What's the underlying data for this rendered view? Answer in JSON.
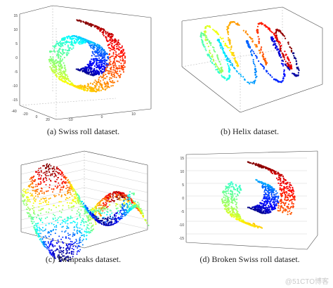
{
  "figure": {
    "panels": [
      {
        "id": "a",
        "caption": "(a)  Swiss roll dataset.",
        "chart_type": "scatter3d",
        "colormap": "jet",
        "z_ticks": [
          "15",
          "10",
          "5",
          "0",
          "-5",
          "-10",
          "-15"
        ],
        "x_ticks": [
          "-40",
          "-20",
          "0",
          "20"
        ],
        "y_ticks": [
          "-10",
          "0",
          "10"
        ]
      },
      {
        "id": "b",
        "caption": "(b)  Helix dataset.",
        "chart_type": "scatter3d",
        "colormap": "jet"
      },
      {
        "id": "c",
        "caption": "(c)  Twinpeaks dataset.",
        "chart_type": "scatter3d",
        "colormap": "jet"
      },
      {
        "id": "d",
        "caption": "(d)  Broken Swiss roll dataset.",
        "chart_type": "scatter3d",
        "colormap": "jet",
        "z_ticks": [
          "15",
          "10",
          "5",
          "0",
          "-5",
          "-10",
          "-15"
        ]
      }
    ],
    "watermark": "@51CTO博客"
  }
}
